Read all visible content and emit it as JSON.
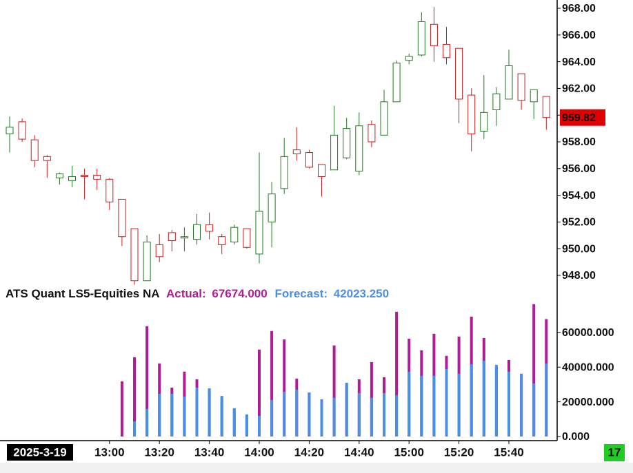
{
  "chart_data": [
    {
      "type": "candlestick",
      "categories": [
        null,
        null,
        null,
        null,
        null,
        null,
        null,
        null,
        "13:00",
        null,
        null,
        null,
        "13:20",
        null,
        null,
        null,
        "13:40",
        null,
        null,
        null,
        "14:00",
        null,
        null,
        null,
        "14:20",
        null,
        null,
        null,
        "14:40",
        null,
        null,
        null,
        "15:00",
        null,
        null,
        null,
        "15:20",
        null,
        null,
        null,
        "15:40",
        null,
        null,
        null
      ],
      "date_label": "2025-3-19",
      "timer_label": "17",
      "open": [
        958.6,
        959.5,
        958.15,
        956.9,
        955.3,
        955.1,
        955.5,
        955.5,
        955.2,
        953.7,
        951.5,
        947.6,
        950.3,
        951.2,
        950.8,
        950.7,
        951.8,
        950.9,
        950.5,
        951.5,
        949.6,
        952.0,
        954.5,
        957.4,
        957.2,
        956.3,
        955.9,
        956.8,
        955.8,
        959.3,
        958.5,
        961.0,
        964.1,
        964.5,
        966.8,
        965.3,
        965.0,
        961.5,
        958.8,
        960.4,
        961.2,
        963.1,
        961.0,
        961.4
      ],
      "high": [
        959.9,
        959.75,
        958.5,
        957.0,
        955.7,
        956.2,
        956.0,
        956.0,
        955.3,
        953.7,
        951.5,
        951.0,
        951.1,
        951.4,
        951.6,
        952.6,
        952.7,
        951.1,
        951.8,
        951.5,
        957.2,
        955.0,
        958.3,
        959.1,
        957.4,
        956.3,
        960.7,
        959.8,
        960.2,
        959.6,
        961.9,
        964.1,
        964.6,
        967.7,
        968.1,
        966.6,
        965.0,
        962.0,
        963.0,
        962.1,
        964.9,
        963.1,
        961.9,
        961.4
      ],
      "low": [
        957.2,
        958.0,
        956.1,
        955.3,
        954.8,
        954.6,
        953.7,
        954.4,
        952.9,
        950.2,
        947.3,
        947.6,
        949.0,
        949.8,
        949.8,
        950.3,
        950.7,
        949.6,
        950.3,
        950.0,
        948.9,
        950.1,
        954.1,
        956.6,
        956.0,
        953.9,
        955.9,
        956.7,
        955.5,
        957.6,
        958.5,
        961.0,
        963.8,
        964.4,
        964.0,
        963.8,
        959.4,
        957.3,
        958.2,
        959.2,
        961.2,
        960.4,
        959.7,
        958.9
      ],
      "close": [
        959.1,
        958.2,
        956.6,
        956.6,
        955.6,
        955.4,
        955.4,
        955.2,
        953.5,
        950.9,
        947.6,
        950.5,
        949.4,
        950.6,
        950.9,
        951.8,
        951.3,
        950.3,
        951.6,
        950.1,
        952.8,
        954.1,
        956.9,
        957.1,
        956.1,
        955.4,
        958.5,
        959.0,
        959.2,
        958.0,
        961.0,
        963.9,
        964.4,
        967.0,
        965.2,
        964.3,
        961.2,
        958.6,
        960.2,
        961.6,
        963.7,
        961.1,
        961.9,
        959.82
      ],
      "up_color": "#1e7a1e",
      "down_color": "#cc1a1a",
      "ylim": [
        947.33,
        968.62
      ],
      "yticks": [
        {
          "value": 948,
          "label": "948.00"
        },
        {
          "value": 950,
          "label": "950.00"
        },
        {
          "value": 952,
          "label": "952.00"
        },
        {
          "value": 954,
          "label": "954.00"
        },
        {
          "value": 956,
          "label": "956.00"
        },
        {
          "value": 958,
          "label": "958.00"
        },
        {
          "value": 960,
          "label": "960.00"
        },
        {
          "value": 962,
          "label": "962.00"
        },
        {
          "value": 964,
          "label": "964.00"
        },
        {
          "value": 966,
          "label": "966.00"
        },
        {
          "value": 968,
          "label": "968.00"
        }
      ]
    },
    {
      "type": "bar",
      "title": "ATS Quant LS5-Equities NA",
      "series": [
        {
          "name": "Actual:",
          "last_label": "67674.000",
          "color": "#b01c94",
          "values": [
            null,
            null,
            null,
            null,
            null,
            null,
            null,
            null,
            null,
            31800,
            45700,
            63600,
            42100,
            28200,
            37400,
            33000,
            27000,
            22500,
            15800,
            12300,
            50100,
            60800,
            56000,
            33400,
            25000,
            21000,
            52500,
            30500,
            33000,
            42900,
            34200,
            71900,
            56400,
            49700,
            59200,
            46500,
            57600,
            69100,
            56800,
            40500,
            44100,
            35500,
            76300,
            67674
          ]
        },
        {
          "name": "Forecast:",
          "last_label": "42023.250",
          "color": "#4a8fe7",
          "values": [
            null,
            null,
            null,
            null,
            null,
            null,
            null,
            null,
            null,
            null,
            8700,
            15900,
            24600,
            24600,
            23000,
            28200,
            27800,
            23400,
            16300,
            12700,
            11900,
            21100,
            25800,
            27000,
            25400,
            21500,
            22300,
            31000,
            25000,
            22300,
            25000,
            23800,
            37400,
            35000,
            35000,
            38900,
            36200,
            41700,
            43700,
            41300,
            37400,
            36200,
            30600,
            42023
          ]
        }
      ],
      "ylim": [
        0,
        77000
      ],
      "yticks": [
        {
          "value": 0,
          "label": "0.000"
        },
        {
          "value": 20000,
          "label": "20000.000"
        },
        {
          "value": 40000,
          "label": "40000.000"
        },
        {
          "value": 60000,
          "label": "60000.000"
        }
      ]
    }
  ]
}
